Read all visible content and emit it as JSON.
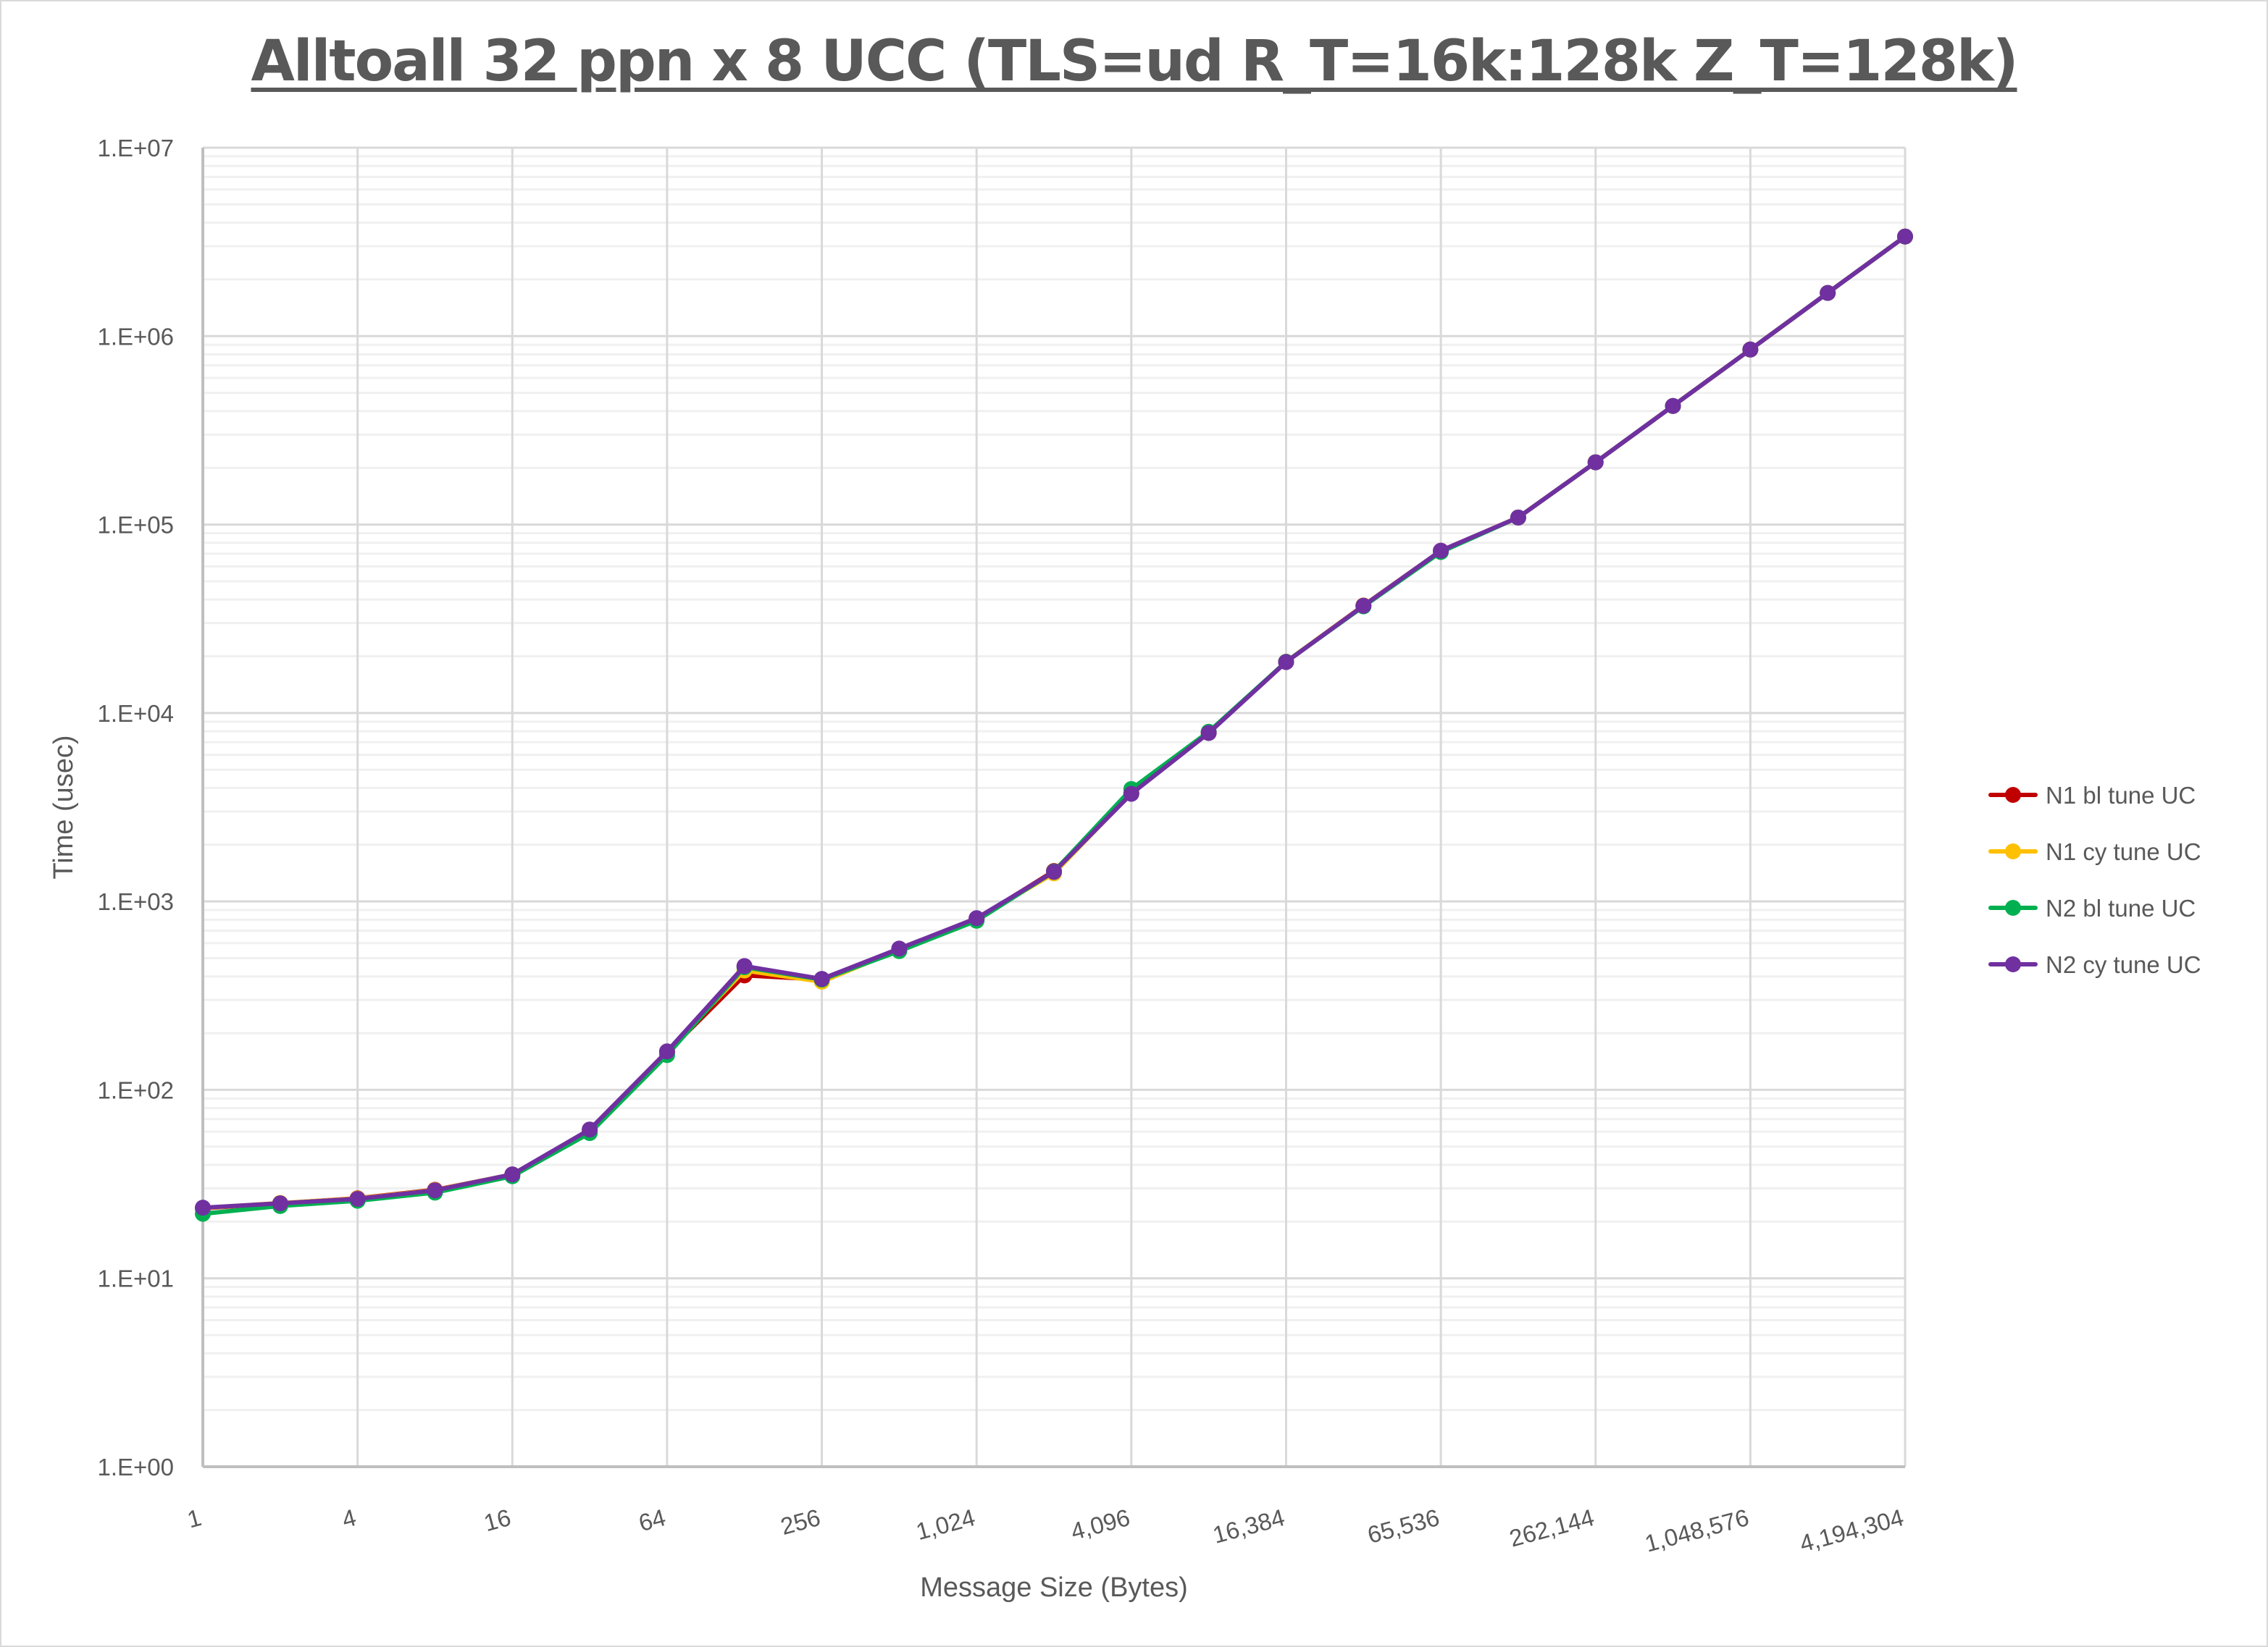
{
  "chart_data": {
    "type": "line",
    "title": "Alltoall 32 ppn x 8 UCC (TLS=ud R_T=16k:128k Z_T=128k)",
    "xlabel": "Message Size (Bytes)",
    "ylabel": "Time (usec)",
    "yscale": "log",
    "ylim": [
      1,
      10000000
    ],
    "ytick_labels": [
      "1.E+00",
      "1.E+01",
      "1.E+02",
      "1.E+03",
      "1.E+04",
      "1.E+05",
      "1.E+06",
      "1.E+07"
    ],
    "xtick_labels": [
      "1",
      "4",
      "16",
      "64",
      "256",
      "1,024",
      "4,096",
      "16,384",
      "65,536",
      "262,144",
      "1,048,576",
      "4,194,304"
    ],
    "grid": true,
    "legend_position": "right",
    "x": [
      1,
      2,
      4,
      8,
      16,
      32,
      64,
      128,
      256,
      512,
      1024,
      2048,
      4096,
      8192,
      16384,
      32768,
      65536,
      131072,
      262144,
      524288,
      1048576,
      2097152,
      4194304
    ],
    "series": [
      {
        "name": "N1 bl tune UC",
        "color": "#C00000",
        "values": [
          23.5,
          25.0,
          26.6,
          29.5,
          35.5,
          61,
          158,
          405,
          385,
          548,
          805,
          1450,
          3760,
          7850,
          18700,
          37200,
          72500,
          109000,
          214000,
          426000,
          849000,
          1695000,
          3377000
        ]
      },
      {
        "name": "N1 cy tune UC",
        "color": "#FFC000",
        "values": [
          23.6,
          25.1,
          26.5,
          29.4,
          35.6,
          61,
          160,
          430,
          375,
          555,
          810,
          1410,
          3760,
          7850,
          18700,
          37200,
          72500,
          109000,
          214000,
          426000,
          849000,
          1695000,
          3377000
        ]
      },
      {
        "name": "N2 bl tune UC",
        "color": "#00B050",
        "values": [
          22.0,
          24.2,
          25.8,
          28.5,
          34.8,
          59,
          153,
          448,
          385,
          545,
          790,
          1440,
          3950,
          7950,
          18700,
          36800,
          71500,
          109000,
          214000,
          426000,
          849000,
          1695000,
          3377000
        ]
      },
      {
        "name": "N2 cy tune UC",
        "color": "#7030A0",
        "values": [
          23.7,
          25.0,
          26.4,
          29.3,
          35.6,
          61.6,
          160,
          454,
          388,
          562,
          815,
          1435,
          3725,
          7830,
          18630,
          37100,
          72700,
          109000,
          214000,
          426000,
          849000,
          1695000,
          3377000
        ]
      }
    ]
  }
}
